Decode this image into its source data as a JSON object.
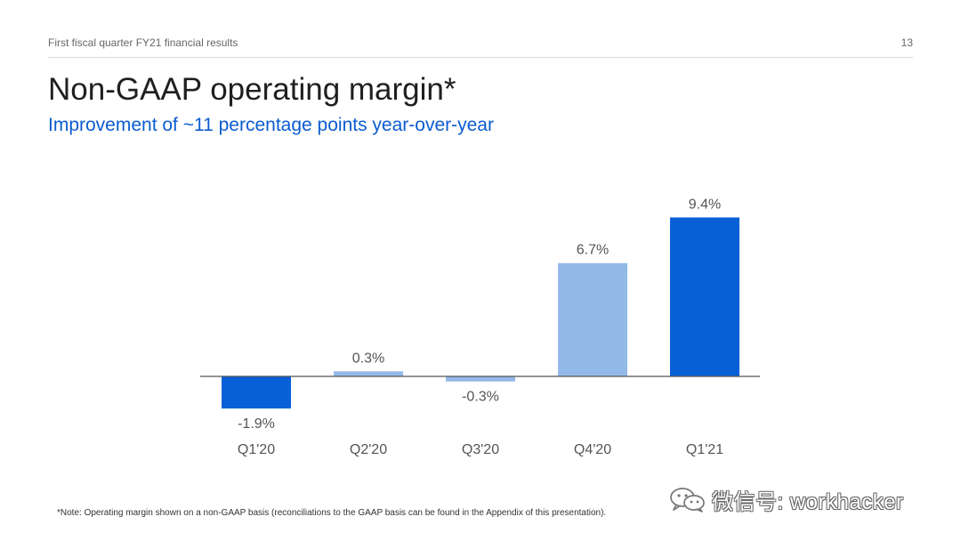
{
  "header": {
    "deck_title": "First fiscal quarter FY21 financial results",
    "page_number": "13"
  },
  "title": "Non-GAAP operating margin*",
  "subtitle": "Improvement of ~11 percentage points year-over-year",
  "footnote": "*Note: Operating margin shown on a non-GAAP basis (reconciliations to the GAAP basis can be found in the Appendix of this presentation).",
  "watermark": {
    "text": "微信号: workhacker",
    "icon": "wechat-logo-icon"
  },
  "colors": {
    "accent_dark": "#0760d6",
    "accent_light": "#93b9e8",
    "subtitle": "#0b5ccf",
    "axis": "#555555"
  },
  "chart_data": {
    "type": "bar",
    "categories": [
      "Q1'20",
      "Q2'20",
      "Q3'20",
      "Q4'20",
      "Q1'21"
    ],
    "values": [
      -1.9,
      0.3,
      -0.3,
      6.7,
      9.4
    ],
    "data_labels": [
      "-1.9%",
      "0.3%",
      "-0.3%",
      "6.7%",
      "9.4%"
    ],
    "bar_colors": [
      "#0760d6",
      "#93b9e8",
      "#93b9e8",
      "#93b9e8",
      "#0760d6"
    ],
    "title": "",
    "xlabel": "",
    "ylabel": "",
    "ylim": [
      -1.9,
      9.4
    ],
    "grid": false,
    "legend": "none"
  }
}
